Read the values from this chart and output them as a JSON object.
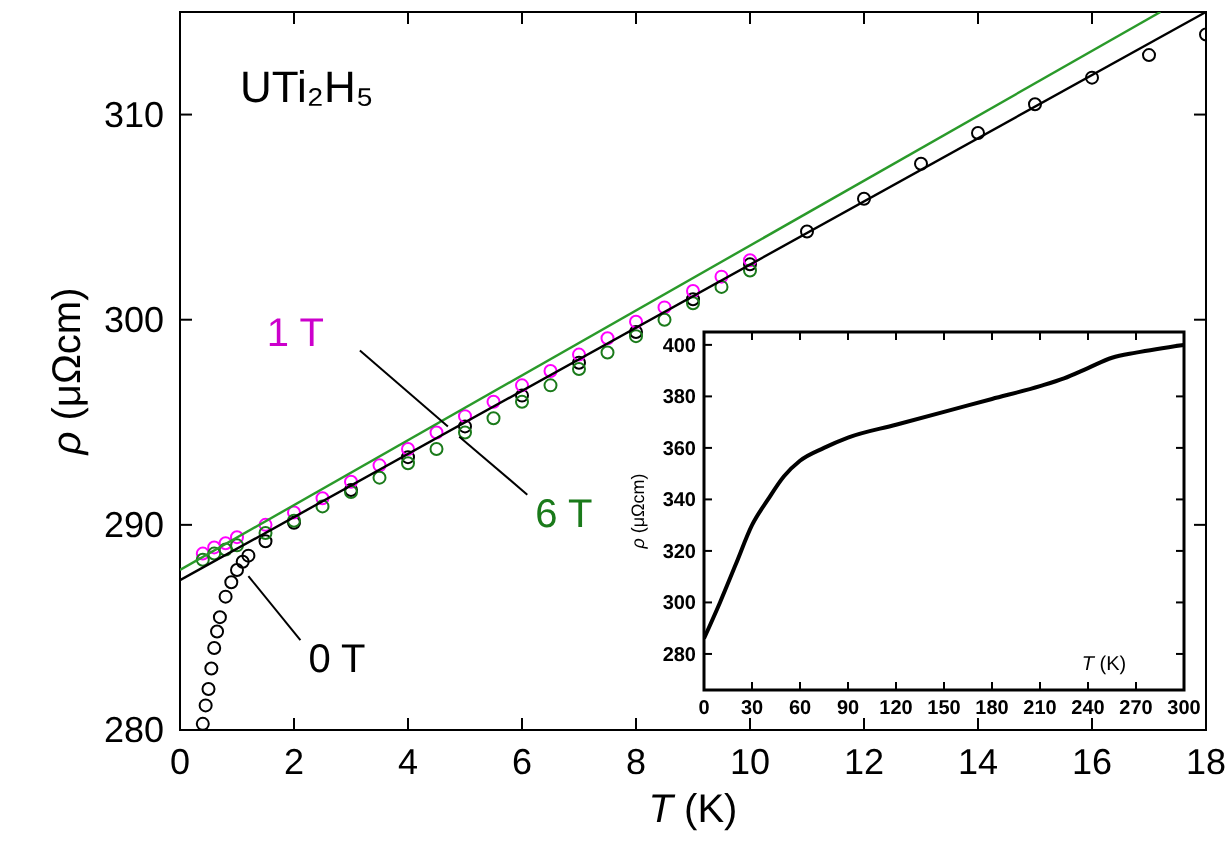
{
  "chart_data": [
    {
      "type": "scatter",
      "title": "UTi₂H₅",
      "xlabel": "T (K)",
      "ylabel": "ρ (μΩcm)",
      "xlim": [
        0,
        18
      ],
      "ylim": [
        280,
        315
      ],
      "xticks": [
        0,
        2,
        4,
        6,
        8,
        10,
        12,
        14,
        16,
        18
      ],
      "yticks": [
        280,
        290,
        300,
        310
      ],
      "series": [
        {
          "marker": "circle",
          "color": "#000000",
          "x": [
            0.4,
            0.45,
            0.5,
            0.55,
            0.6,
            0.65,
            0.7,
            0.8,
            0.9,
            1.0,
            1.1,
            1.2,
            1.5,
            2,
            3,
            4,
            5,
            6,
            7,
            8,
            9,
            10,
            11,
            12,
            13,
            14,
            15,
            16,
            17,
            18
          ],
          "values": [
            280.3,
            281.2,
            282,
            283,
            284,
            284.8,
            285.5,
            286.5,
            287.2,
            287.8,
            288.2,
            288.5,
            289.2,
            290.1,
            291.7,
            293.3,
            294.8,
            296.3,
            297.9,
            299.4,
            301.0,
            302.7,
            304.3,
            305.9,
            307.6,
            309.1,
            310.5,
            311.8,
            312.9,
            313.9
          ]
        },
        {
          "marker": "circle",
          "color": "#ff00ff",
          "x": [
            0.4,
            0.6,
            0.8,
            1,
            1.5,
            2,
            2.5,
            3,
            3.5,
            4,
            4.5,
            5,
            5.5,
            6,
            6.5,
            7,
            7.5,
            8,
            8.5,
            9,
            9.5,
            10
          ],
          "values": [
            288.6,
            288.9,
            289.1,
            289.4,
            290.0,
            290.6,
            291.3,
            292.1,
            292.9,
            293.7,
            294.5,
            295.3,
            296.0,
            296.8,
            297.5,
            298.3,
            299.1,
            299.9,
            300.6,
            301.4,
            302.1,
            302.9
          ]
        },
        {
          "marker": "circle",
          "color": "#1a7a1a",
          "x": [
            0.4,
            0.6,
            0.8,
            1,
            1.5,
            2,
            2.5,
            3,
            3.5,
            4,
            4.5,
            5,
            5.5,
            6,
            6.5,
            7,
            7.5,
            8,
            8.5,
            9,
            9.5,
            10
          ],
          "values": [
            288.3,
            288.6,
            288.8,
            289.0,
            289.6,
            290.2,
            290.9,
            291.6,
            292.3,
            293.0,
            293.7,
            294.5,
            295.2,
            296.0,
            296.8,
            297.6,
            298.4,
            299.2,
            300.0,
            300.8,
            301.6,
            302.4
          ]
        },
        {
          "type": "line",
          "color": "#000000",
          "x": [
            0,
            18
          ],
          "values": [
            287.3,
            315
          ]
        },
        {
          "type": "line",
          "color": "#2a9a2a",
          "x": [
            0,
            17.2
          ],
          "values": [
            287.8,
            315
          ]
        }
      ],
      "annotations": [
        {
          "text": "1 T",
          "x": 4.7,
          "y": 294.8
        },
        {
          "text": "6 T",
          "x": 4.9,
          "y": 294.3
        },
        {
          "text": "0 T",
          "x": 1.2,
          "y": 287.5
        }
      ]
    },
    {
      "type": "line",
      "xlabel": "T (K)",
      "ylabel": "ρ (μΩcm)",
      "xlim": [
        0,
        300
      ],
      "ylim": [
        266,
        405
      ],
      "xticks": [
        0,
        30,
        60,
        90,
        120,
        150,
        180,
        210,
        240,
        270,
        300
      ],
      "yticks": [
        280,
        300,
        320,
        340,
        360,
        380,
        400
      ],
      "x": [
        0,
        10,
        20,
        30,
        40,
        50,
        60,
        75,
        90,
        120,
        150,
        180,
        210,
        225,
        240,
        255,
        270,
        300
      ],
      "values": [
        286,
        300,
        315,
        330,
        340,
        349,
        355,
        360,
        364,
        369,
        374,
        379,
        384,
        387,
        391,
        395,
        397,
        400
      ],
      "color": "#000000"
    }
  ]
}
